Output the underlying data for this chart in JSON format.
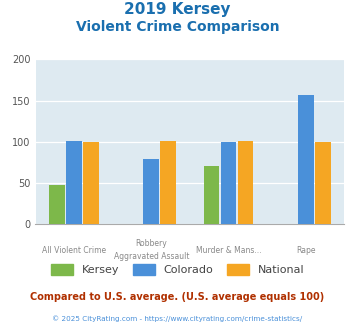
{
  "title_line1": "2019 Kersey",
  "title_line2": "Violent Crime Comparison",
  "title_color": "#1a6faf",
  "group_labels_row1": [
    "All Violent Crime",
    "Robbery",
    "Murder & Mans...",
    "Rape"
  ],
  "group_labels_row2": [
    "",
    "Aggravated Assault",
    "",
    ""
  ],
  "series": {
    "Kersey": [
      48,
      0,
      71,
      0
    ],
    "Colorado": [
      101,
      79,
      100,
      157
    ],
    "National": [
      100,
      101,
      101,
      100
    ]
  },
  "colors": {
    "Kersey": "#7db84a",
    "Colorado": "#4a90d9",
    "National": "#f5a623"
  },
  "ylim": [
    0,
    200
  ],
  "yticks": [
    0,
    50,
    100,
    150,
    200
  ],
  "plot_bg_color": "#deeaf1",
  "footer_text": "Compared to U.S. average. (U.S. average equals 100)",
  "footer_color": "#b03000",
  "copyright_text": "© 2025 CityRating.com - https://www.cityrating.com/crime-statistics/",
  "copyright_color": "#4a90d9",
  "bar_width": 0.22
}
